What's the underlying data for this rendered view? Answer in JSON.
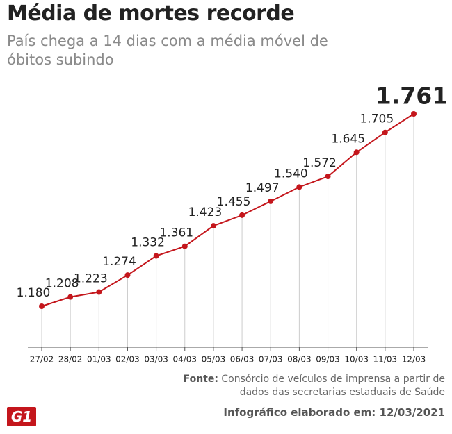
{
  "title": "Média de mortes recorde",
  "subtitle": "País chega a 14 dias com a média móvel de óbitos subindo",
  "chart_data": {
    "type": "line",
    "color": "#c4161c",
    "categories": [
      "27/02",
      "28/02",
      "01/03",
      "02/03",
      "03/03",
      "04/03",
      "05/03",
      "06/03",
      "07/03",
      "08/03",
      "09/03",
      "10/03",
      "11/03",
      "12/03"
    ],
    "values": [
      1180,
      1208,
      1223,
      1274,
      1332,
      1361,
      1423,
      1455,
      1497,
      1540,
      1572,
      1645,
      1705,
      1761
    ],
    "value_labels": [
      "1.180",
      "1.208",
      "1.223",
      "1.274",
      "1.332",
      "1.361",
      "1.423",
      "1.455",
      "1.497",
      "1.540",
      "1.572",
      "1.645",
      "1.705",
      "1.761"
    ]
  },
  "source_label": "Fonte:",
  "source": "Consórcio de veículos de imprensa a partir de dados das secretarias estaduais de Saúde",
  "logo": "G1",
  "footer": "Infográfico elaborado em: 12/03/2021"
}
